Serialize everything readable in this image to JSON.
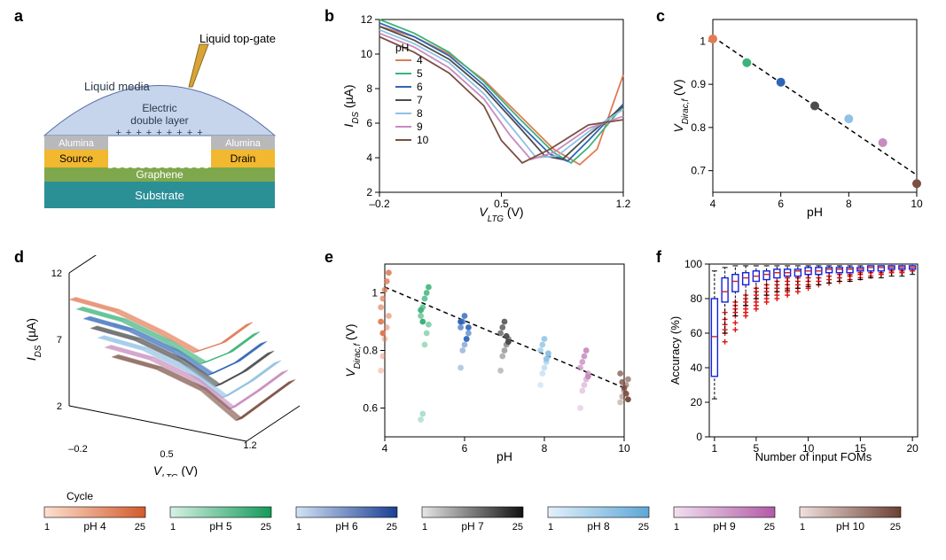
{
  "panel_labels": {
    "a": "a",
    "b": "b",
    "c": "c",
    "d": "d",
    "e": "e",
    "f": "f"
  },
  "colors": {
    "ph4": "#e27a53",
    "ph5": "#3cb37a",
    "ph6": "#2f66b8",
    "ph7": "#4c4c4c",
    "ph8": "#8fc2e4",
    "ph9": "#c88bbd",
    "ph10": "#7b4f42",
    "axis": "#000000",
    "grid": "#dddddd",
    "dash": "#000000"
  },
  "diagram": {
    "top_gate": "Liquid top-gate",
    "liquid": "Liquid media",
    "edl": "Electric double layer",
    "alumina": "Alumina",
    "source": "Source",
    "drain": "Drain",
    "graphene": "Graphene",
    "substrate": "Substrate",
    "plus_row": "+ + + + + + + + +",
    "colors": {
      "liquid": "#c6d4ec",
      "alumina": "#b9b9b9",
      "metal": "#f2b82f",
      "graphene": "#7fa84c",
      "substrate": "#2b8f96",
      "gate": "#d9a437",
      "text": "#ffffff",
      "text_dark": "#2b3a4a"
    }
  },
  "b": {
    "xlabel": "V_LTG (V)",
    "ylabel": "I_DS (µA)",
    "xlim": [
      -0.2,
      1.2
    ],
    "ylim": [
      2,
      12
    ],
    "xticks": [
      -0.2,
      0.5,
      1.2
    ],
    "yticks": [
      2,
      4,
      6,
      8,
      10,
      12
    ],
    "legend_title": "pH",
    "series": [
      {
        "ph": "4",
        "color": "#e27a53",
        "x": [
          -0.2,
          0.0,
          0.2,
          0.4,
          0.6,
          0.8,
          0.95,
          1.05,
          1.2
        ],
        "y": [
          11.6,
          11.0,
          10.0,
          8.5,
          6.5,
          4.5,
          3.6,
          4.5,
          8.8
        ]
      },
      {
        "ph": "5",
        "color": "#3cb37a",
        "x": [
          -0.2,
          0.0,
          0.2,
          0.4,
          0.6,
          0.8,
          0.9,
          1.0,
          1.2
        ],
        "y": [
          12.0,
          11.2,
          10.1,
          8.4,
          6.3,
          4.3,
          3.7,
          4.6,
          7.0
        ]
      },
      {
        "ph": "6",
        "color": "#2f66b8",
        "x": [
          -0.2,
          0.0,
          0.2,
          0.4,
          0.6,
          0.78,
          0.88,
          1.0,
          1.2
        ],
        "y": [
          11.8,
          11.0,
          9.9,
          8.2,
          6.0,
          4.2,
          3.8,
          5.0,
          7.1
        ]
      },
      {
        "ph": "7",
        "color": "#4c4c4c",
        "x": [
          -0.2,
          0.0,
          0.2,
          0.4,
          0.6,
          0.75,
          0.85,
          1.0,
          1.2
        ],
        "y": [
          11.6,
          10.8,
          9.7,
          8.0,
          5.8,
          4.1,
          3.9,
          5.3,
          7.0
        ]
      },
      {
        "ph": "8",
        "color": "#8fc2e4",
        "x": [
          -0.2,
          0.0,
          0.2,
          0.4,
          0.58,
          0.7,
          0.82,
          1.0,
          1.2
        ],
        "y": [
          11.4,
          10.6,
          9.5,
          7.7,
          5.5,
          4.0,
          4.1,
          5.5,
          6.8
        ]
      },
      {
        "ph": "9",
        "color": "#c88bbd",
        "x": [
          -0.2,
          0.0,
          0.2,
          0.4,
          0.55,
          0.67,
          0.8,
          1.0,
          1.2
        ],
        "y": [
          11.2,
          10.4,
          9.2,
          7.4,
          5.3,
          3.9,
          4.3,
          5.7,
          6.4
        ]
      },
      {
        "ph": "10",
        "color": "#7b4f42",
        "x": [
          -0.2,
          0.0,
          0.2,
          0.4,
          0.5,
          0.62,
          0.78,
          1.0,
          1.2
        ],
        "y": [
          11.0,
          10.1,
          8.9,
          7.0,
          5.0,
          3.7,
          4.5,
          5.9,
          6.2
        ]
      }
    ]
  },
  "c": {
    "xlabel": "pH",
    "ylabel": "V_Dirac,f (V)",
    "xlim": [
      4,
      10
    ],
    "ylim": [
      0.65,
      1.05
    ],
    "xticks": [
      4,
      6,
      8,
      10
    ],
    "yticks": [
      0.7,
      0.8,
      0.9,
      1.0
    ],
    "points": [
      {
        "x": 4,
        "y": 1.005,
        "color": "#e27a53"
      },
      {
        "x": 5,
        "y": 0.95,
        "color": "#3cb37a"
      },
      {
        "x": 6,
        "y": 0.905,
        "color": "#2f66b8"
      },
      {
        "x": 7,
        "y": 0.85,
        "color": "#4c4c4c"
      },
      {
        "x": 8,
        "y": 0.82,
        "color": "#8fc2e4"
      },
      {
        "x": 9,
        "y": 0.765,
        "color": "#c88bbd"
      },
      {
        "x": 10,
        "y": 0.67,
        "color": "#7b4f42"
      }
    ],
    "fit": {
      "x": [
        4,
        10
      ],
      "y": [
        1.01,
        0.69
      ]
    }
  },
  "d": {
    "xlabel": "V_LTG (V)",
    "ylabel": "I_DS (µA)",
    "xticks": [
      "-0.2",
      "0.5",
      "1.2"
    ],
    "yticks": [
      "2",
      "7",
      "12"
    ]
  },
  "e": {
    "xlabel": "pH",
    "ylabel": "V_Dirac,f (V)",
    "xlim": [
      4,
      10
    ],
    "ylim": [
      0.5,
      1.1
    ],
    "xticks": [
      4,
      6,
      8,
      10
    ],
    "yticks": [
      0.6,
      0.8,
      1.0
    ],
    "clusters": [
      {
        "x": 4,
        "base": "#e27a53",
        "y": [
          0.73,
          0.78,
          0.84,
          0.88,
          0.92,
          0.95,
          0.98,
          1.01,
          1.04,
          1.07,
          0.9,
          0.86
        ]
      },
      {
        "x": 5,
        "base": "#3cb37a",
        "y": [
          0.56,
          0.58,
          0.82,
          0.86,
          0.89,
          0.92,
          0.95,
          0.98,
          1.0,
          1.02,
          0.94,
          0.9
        ]
      },
      {
        "x": 6,
        "base": "#2f66b8",
        "y": [
          0.74,
          0.8,
          0.82,
          0.84,
          0.86,
          0.88,
          0.9,
          0.92,
          0.84,
          0.88,
          0.9
        ]
      },
      {
        "x": 7,
        "base": "#4c4c4c",
        "y": [
          0.73,
          0.78,
          0.8,
          0.82,
          0.84,
          0.86,
          0.88,
          0.9,
          0.85,
          0.83
        ]
      },
      {
        "x": 8,
        "base": "#8fc2e4",
        "y": [
          0.68,
          0.72,
          0.74,
          0.76,
          0.78,
          0.8,
          0.82,
          0.84,
          0.77,
          0.79
        ]
      },
      {
        "x": 9,
        "base": "#c88bbd",
        "y": [
          0.6,
          0.66,
          0.68,
          0.7,
          0.72,
          0.74,
          0.76,
          0.78,
          0.8,
          0.71
        ]
      },
      {
        "x": 10,
        "base": "#7b4f42",
        "y": [
          0.62,
          0.64,
          0.66,
          0.68,
          0.7,
          0.72,
          0.69,
          0.67,
          0.65,
          0.63
        ]
      }
    ],
    "fit": {
      "x": [
        4,
        10
      ],
      "y": [
        1.02,
        0.67
      ]
    }
  },
  "f": {
    "xlabel": "Number of input FOMs",
    "ylabel": "Accuracy (%)",
    "xlim": [
      0.5,
      20.5
    ],
    "ylim": [
      0,
      100
    ],
    "xticks": [
      1,
      5,
      10,
      15,
      20
    ],
    "yticks": [
      0,
      20,
      40,
      60,
      80,
      100
    ],
    "box_color": "#1020e0",
    "cross_color": "#e01010",
    "boxes": [
      {
        "x": 1,
        "q1": 35,
        "med": 58,
        "q3": 80,
        "wl": 22,
        "wh": 96
      },
      {
        "x": 2,
        "q1": 78,
        "med": 84,
        "q3": 92,
        "wl": 60,
        "wh": 98
      },
      {
        "x": 3,
        "q1": 84,
        "med": 90,
        "q3": 94,
        "wl": 70,
        "wh": 99
      },
      {
        "x": 4,
        "q1": 88,
        "med": 92,
        "q3": 95,
        "wl": 76,
        "wh": 99
      },
      {
        "x": 5,
        "q1": 90,
        "med": 93,
        "q3": 96,
        "wl": 80,
        "wh": 99
      },
      {
        "x": 6,
        "q1": 91,
        "med": 94,
        "q3": 96,
        "wl": 82,
        "wh": 99
      },
      {
        "x": 7,
        "q1": 92,
        "med": 95,
        "q3": 97,
        "wl": 84,
        "wh": 99
      },
      {
        "x": 8,
        "q1": 93,
        "med": 95,
        "q3": 97,
        "wl": 85,
        "wh": 99
      },
      {
        "x": 9,
        "q1": 93,
        "med": 96,
        "q3": 97,
        "wl": 86,
        "wh": 99
      },
      {
        "x": 10,
        "q1": 94,
        "med": 96,
        "q3": 98,
        "wl": 87,
        "wh": 99
      },
      {
        "x": 11,
        "q1": 94,
        "med": 96,
        "q3": 98,
        "wl": 88,
        "wh": 99
      },
      {
        "x": 12,
        "q1": 95,
        "med": 97,
        "q3": 98,
        "wl": 89,
        "wh": 99
      },
      {
        "x": 13,
        "q1": 95,
        "med": 97,
        "q3": 98,
        "wl": 90,
        "wh": 99
      },
      {
        "x": 14,
        "q1": 95,
        "med": 97,
        "q3": 98,
        "wl": 90,
        "wh": 99
      },
      {
        "x": 15,
        "q1": 96,
        "med": 97,
        "q3": 98,
        "wl": 91,
        "wh": 99
      },
      {
        "x": 16,
        "q1": 96,
        "med": 98,
        "q3": 99,
        "wl": 92,
        "wh": 99
      },
      {
        "x": 17,
        "q1": 96,
        "med": 98,
        "q3": 99,
        "wl": 92,
        "wh": 99
      },
      {
        "x": 18,
        "q1": 97,
        "med": 98,
        "q3": 99,
        "wl": 93,
        "wh": 99
      },
      {
        "x": 19,
        "q1": 97,
        "med": 98,
        "q3": 99,
        "wl": 93,
        "wh": 99
      },
      {
        "x": 20,
        "q1": 97,
        "med": 98,
        "q3": 99,
        "wl": 94,
        "wh": 99
      }
    ],
    "crosses": [
      {
        "x": 1,
        "y": [
          42,
          48,
          50,
          55,
          56,
          60,
          40,
          46
        ]
      },
      {
        "x": 2,
        "y": [
          55,
          60,
          62,
          65,
          68,
          72
        ]
      },
      {
        "x": 3,
        "y": [
          62,
          66,
          70,
          72,
          74,
          76,
          78
        ]
      },
      {
        "x": 4,
        "y": [
          70,
          72,
          74,
          76,
          78,
          80,
          82
        ]
      },
      {
        "x": 5,
        "y": [
          74,
          76,
          78,
          80,
          82,
          84,
          86
        ]
      },
      {
        "x": 6,
        "y": [
          78,
          80,
          82,
          84,
          86,
          88
        ]
      },
      {
        "x": 7,
        "y": [
          80,
          82,
          84,
          86,
          88,
          90
        ]
      },
      {
        "x": 8,
        "y": [
          82,
          84,
          86,
          88,
          90,
          92
        ]
      },
      {
        "x": 9,
        "y": [
          84,
          86,
          88,
          90,
          92
        ]
      },
      {
        "x": 10,
        "y": [
          86,
          88,
          90,
          92,
          94
        ]
      },
      {
        "x": 11,
        "y": [
          88,
          90,
          92,
          94
        ]
      },
      {
        "x": 12,
        "y": [
          89,
          91,
          93,
          95
        ]
      },
      {
        "x": 13,
        "y": [
          90,
          92,
          94,
          95
        ]
      },
      {
        "x": 14,
        "y": [
          91,
          93,
          94,
          96
        ]
      },
      {
        "x": 15,
        "y": [
          92,
          94,
          95,
          96
        ]
      },
      {
        "x": 16,
        "y": [
          93,
          95,
          96,
          97
        ]
      },
      {
        "x": 17,
        "y": [
          94,
          95,
          96,
          97
        ]
      },
      {
        "x": 18,
        "y": [
          95,
          96,
          97,
          98
        ]
      },
      {
        "x": 19,
        "y": [
          95,
          96,
          97,
          98
        ]
      },
      {
        "x": 20,
        "y": [
          96,
          97,
          98,
          98
        ]
      }
    ]
  },
  "colorbars": {
    "title": "Cycle",
    "low": "1",
    "high": "25",
    "bars": [
      {
        "label": "pH 4",
        "start": "#fde0d0",
        "end": "#d35a2a"
      },
      {
        "label": "pH 5",
        "start": "#d6f2e3",
        "end": "#139a5a"
      },
      {
        "label": "pH 6",
        "start": "#d4e2f6",
        "end": "#1a3f93"
      },
      {
        "label": "pH 7",
        "start": "#e6e6e6",
        "end": "#111111"
      },
      {
        "label": "pH 8",
        "start": "#e3f1fb",
        "end": "#5da7d8"
      },
      {
        "label": "pH 9",
        "start": "#f2e0ef",
        "end": "#b25aa6"
      },
      {
        "label": "pH 10",
        "start": "#f1e1dd",
        "end": "#6c3f34"
      }
    ]
  }
}
